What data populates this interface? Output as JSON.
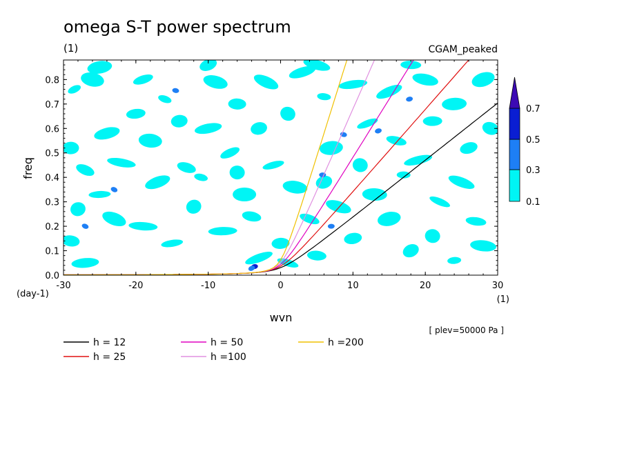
{
  "chart_data": {
    "type": "heatmap",
    "title": "omega S-T power spectrum",
    "subtitle": "(1)",
    "case_label": "CGAM_peaked",
    "xlabel": "wvn",
    "ylabel": "freq",
    "x_unit": "(1)",
    "y_unit": "(day-1)",
    "xlim": [
      -30,
      30
    ],
    "ylim": [
      0,
      0.88
    ],
    "x_ticks": [
      -30,
      -20,
      -10,
      0,
      10,
      20,
      30
    ],
    "x_tick_labels": [
      "-30",
      "-20",
      "-10",
      "0",
      "10",
      "20",
      "30"
    ],
    "y_ticks": [
      0.0,
      0.1,
      0.2,
      0.3,
      0.4,
      0.5,
      0.6,
      0.7,
      0.8
    ],
    "y_tick_labels": [
      "0.0",
      "0.1",
      "0.2",
      "0.3",
      "0.4",
      "0.5",
      "0.6",
      "0.7",
      "0.8"
    ],
    "note": "[ plev=50000 Pa ]",
    "colorbar": {
      "levels": [
        "0.1",
        "0.3",
        "0.5",
        "0.7"
      ],
      "colors": [
        "#00f5f5",
        "#1e7ff5",
        "#0a1ed2",
        "#3c0ab4"
      ]
    },
    "contour_patches": [
      {
        "x": -28.5,
        "y": 0.76,
        "level": 0
      },
      {
        "x": -26,
        "y": 0.8,
        "level": 0
      },
      {
        "x": -29,
        "y": 0.52,
        "level": 0
      },
      {
        "x": -24,
        "y": 0.58,
        "level": 0
      },
      {
        "x": -27,
        "y": 0.43,
        "level": 0
      },
      {
        "x": -22,
        "y": 0.46,
        "level": 0
      },
      {
        "x": -25,
        "y": 0.33,
        "level": 0
      },
      {
        "x": -28,
        "y": 0.27,
        "level": 0
      },
      {
        "x": -23,
        "y": 0.23,
        "level": 0
      },
      {
        "x": -29,
        "y": 0.14,
        "level": 0
      },
      {
        "x": -27,
        "y": 0.05,
        "level": 0
      },
      {
        "x": -19,
        "y": 0.8,
        "level": 0
      },
      {
        "x": -16,
        "y": 0.72,
        "level": 0
      },
      {
        "x": -18,
        "y": 0.55,
        "level": 0
      },
      {
        "x": -14,
        "y": 0.63,
        "level": 0
      },
      {
        "x": -17,
        "y": 0.38,
        "level": 0
      },
      {
        "x": -13,
        "y": 0.44,
        "level": 0
      },
      {
        "x": -19,
        "y": 0.2,
        "level": 0
      },
      {
        "x": -15,
        "y": 0.13,
        "level": 0
      },
      {
        "x": -12,
        "y": 0.28,
        "level": 0
      },
      {
        "x": -9,
        "y": 0.79,
        "level": 0
      },
      {
        "x": -6,
        "y": 0.7,
        "level": 0
      },
      {
        "x": -10,
        "y": 0.6,
        "level": 0
      },
      {
        "x": -7,
        "y": 0.5,
        "level": 0
      },
      {
        "x": -11,
        "y": 0.4,
        "level": 0
      },
      {
        "x": -5,
        "y": 0.33,
        "level": 0
      },
      {
        "x": -3,
        "y": 0.6,
        "level": 0
      },
      {
        "x": -2,
        "y": 0.79,
        "level": 0
      },
      {
        "x": -4,
        "y": 0.24,
        "level": 0
      },
      {
        "x": -8,
        "y": 0.18,
        "level": 0
      },
      {
        "x": -1,
        "y": 0.45,
        "level": 0
      },
      {
        "x": 1,
        "y": 0.66,
        "level": 0
      },
      {
        "x": 2,
        "y": 0.36,
        "level": 0
      },
      {
        "x": 0,
        "y": 0.13,
        "level": 0
      },
      {
        "x": 3,
        "y": 0.83,
        "level": 0
      },
      {
        "x": 4,
        "y": 0.23,
        "level": 0
      },
      {
        "x": 6,
        "y": 0.73,
        "level": 0
      },
      {
        "x": 7,
        "y": 0.52,
        "level": 0
      },
      {
        "x": 6,
        "y": 0.38,
        "level": 0
      },
      {
        "x": 8,
        "y": 0.28,
        "level": 0
      },
      {
        "x": 5,
        "y": 0.08,
        "level": 0
      },
      {
        "x": 10,
        "y": 0.78,
        "level": 0
      },
      {
        "x": 12,
        "y": 0.62,
        "level": 0
      },
      {
        "x": 11,
        "y": 0.45,
        "level": 0
      },
      {
        "x": 13,
        "y": 0.33,
        "level": 0
      },
      {
        "x": 10,
        "y": 0.15,
        "level": 0
      },
      {
        "x": 15,
        "y": 0.75,
        "level": 0
      },
      {
        "x": 16,
        "y": 0.55,
        "level": 0
      },
      {
        "x": 17,
        "y": 0.41,
        "level": 0
      },
      {
        "x": 15,
        "y": 0.23,
        "level": 0
      },
      {
        "x": 18,
        "y": 0.1,
        "level": 0
      },
      {
        "x": 20,
        "y": 0.8,
        "level": 0
      },
      {
        "x": 21,
        "y": 0.63,
        "level": 0
      },
      {
        "x": 19,
        "y": 0.47,
        "level": 0
      },
      {
        "x": 22,
        "y": 0.3,
        "level": 0
      },
      {
        "x": 21,
        "y": 0.16,
        "level": 0
      },
      {
        "x": 24,
        "y": 0.7,
        "level": 0
      },
      {
        "x": 26,
        "y": 0.52,
        "level": 0
      },
      {
        "x": 25,
        "y": 0.38,
        "level": 0
      },
      {
        "x": 27,
        "y": 0.22,
        "level": 0
      },
      {
        "x": 24,
        "y": 0.06,
        "level": 0
      },
      {
        "x": 28,
        "y": 0.8,
        "level": 0
      },
      {
        "x": 29,
        "y": 0.6,
        "level": 0
      },
      {
        "x": 28,
        "y": 0.12,
        "level": 0
      },
      {
        "x": -20,
        "y": 0.66,
        "level": 0
      },
      {
        "x": -3,
        "y": 0.07,
        "level": 0
      },
      {
        "x": 1,
        "y": 0.05,
        "level": 0
      },
      {
        "x": -6,
        "y": 0.42,
        "level": 0
      },
      {
        "x": -25,
        "y": 0.85,
        "level": 0
      },
      {
        "x": -10,
        "y": 0.86,
        "level": 0
      },
      {
        "x": 5,
        "y": 0.86,
        "level": 0
      },
      {
        "x": 18,
        "y": 0.86,
        "level": 0
      },
      {
        "x": -3.6,
        "y": 0.035,
        "level": 2
      },
      {
        "x": -4,
        "y": 0.028,
        "level": 1
      },
      {
        "x": 8.7,
        "y": 0.575,
        "level": 1
      },
      {
        "x": 5.8,
        "y": 0.41,
        "level": 1
      },
      {
        "x": 17.8,
        "y": 0.72,
        "level": 1
      },
      {
        "x": -23,
        "y": 0.35,
        "level": 1
      },
      {
        "x": -14.5,
        "y": 0.755,
        "level": 1
      },
      {
        "x": 7,
        "y": 0.2,
        "level": 1
      },
      {
        "x": 13.5,
        "y": 0.59,
        "level": 1
      },
      {
        "x": -27,
        "y": 0.2,
        "level": 1
      }
    ],
    "series": [
      {
        "name": "h = 12",
        "label": "h = 12",
        "color": "#000000",
        "h": 12
      },
      {
        "name": "h = 25",
        "label": "h = 25",
        "color": "#e01010",
        "h": 25
      },
      {
        "name": "h = 50",
        "label": "h = 50",
        "color": "#e000c0",
        "h": 50
      },
      {
        "name": "h =100",
        "label": "h =100",
        "color": "#e090e0",
        "h": 100
      },
      {
        "name": "h =200",
        "label": "h =200",
        "color": "#f0c000",
        "h": 200
      }
    ]
  }
}
